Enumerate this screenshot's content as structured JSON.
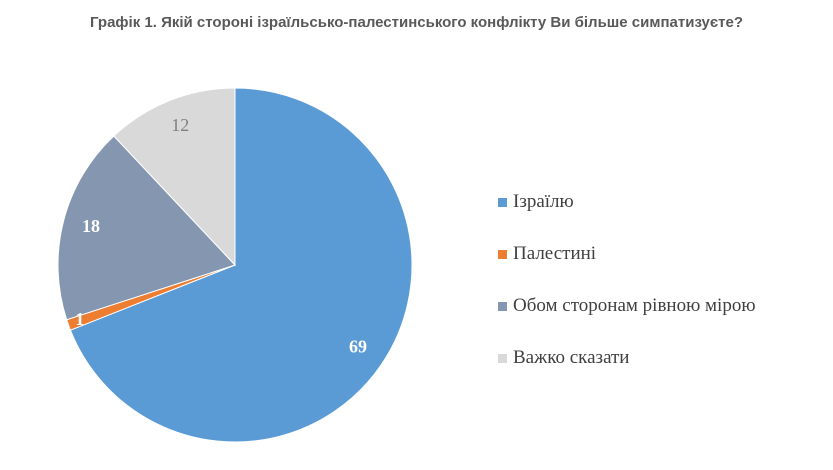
{
  "title": "Графік 1. Якій стороні ізраїльсько-палестинського конфлікту Ви більше симпатизуєте?",
  "chart_data": {
    "type": "pie",
    "title": "Графік 1. Якій стороні ізраїльсько-палестинського конфлікту Ви більше симпатизуєте?",
    "categories": [
      "Ізраїлю",
      "Палестині",
      "Обом сторонам рівною мірою",
      "Важко сказати"
    ],
    "values": [
      69,
      1,
      18,
      12
    ],
    "colors": [
      "#5b9bd5",
      "#ed7d31",
      "#8496b0",
      "#d9d9d9"
    ],
    "label_colors": [
      "#ffffff",
      "#ffffff",
      "#ffffff",
      "#808080"
    ],
    "start": "12 o'clock",
    "direction": "clockwise",
    "legend_position": "right"
  }
}
